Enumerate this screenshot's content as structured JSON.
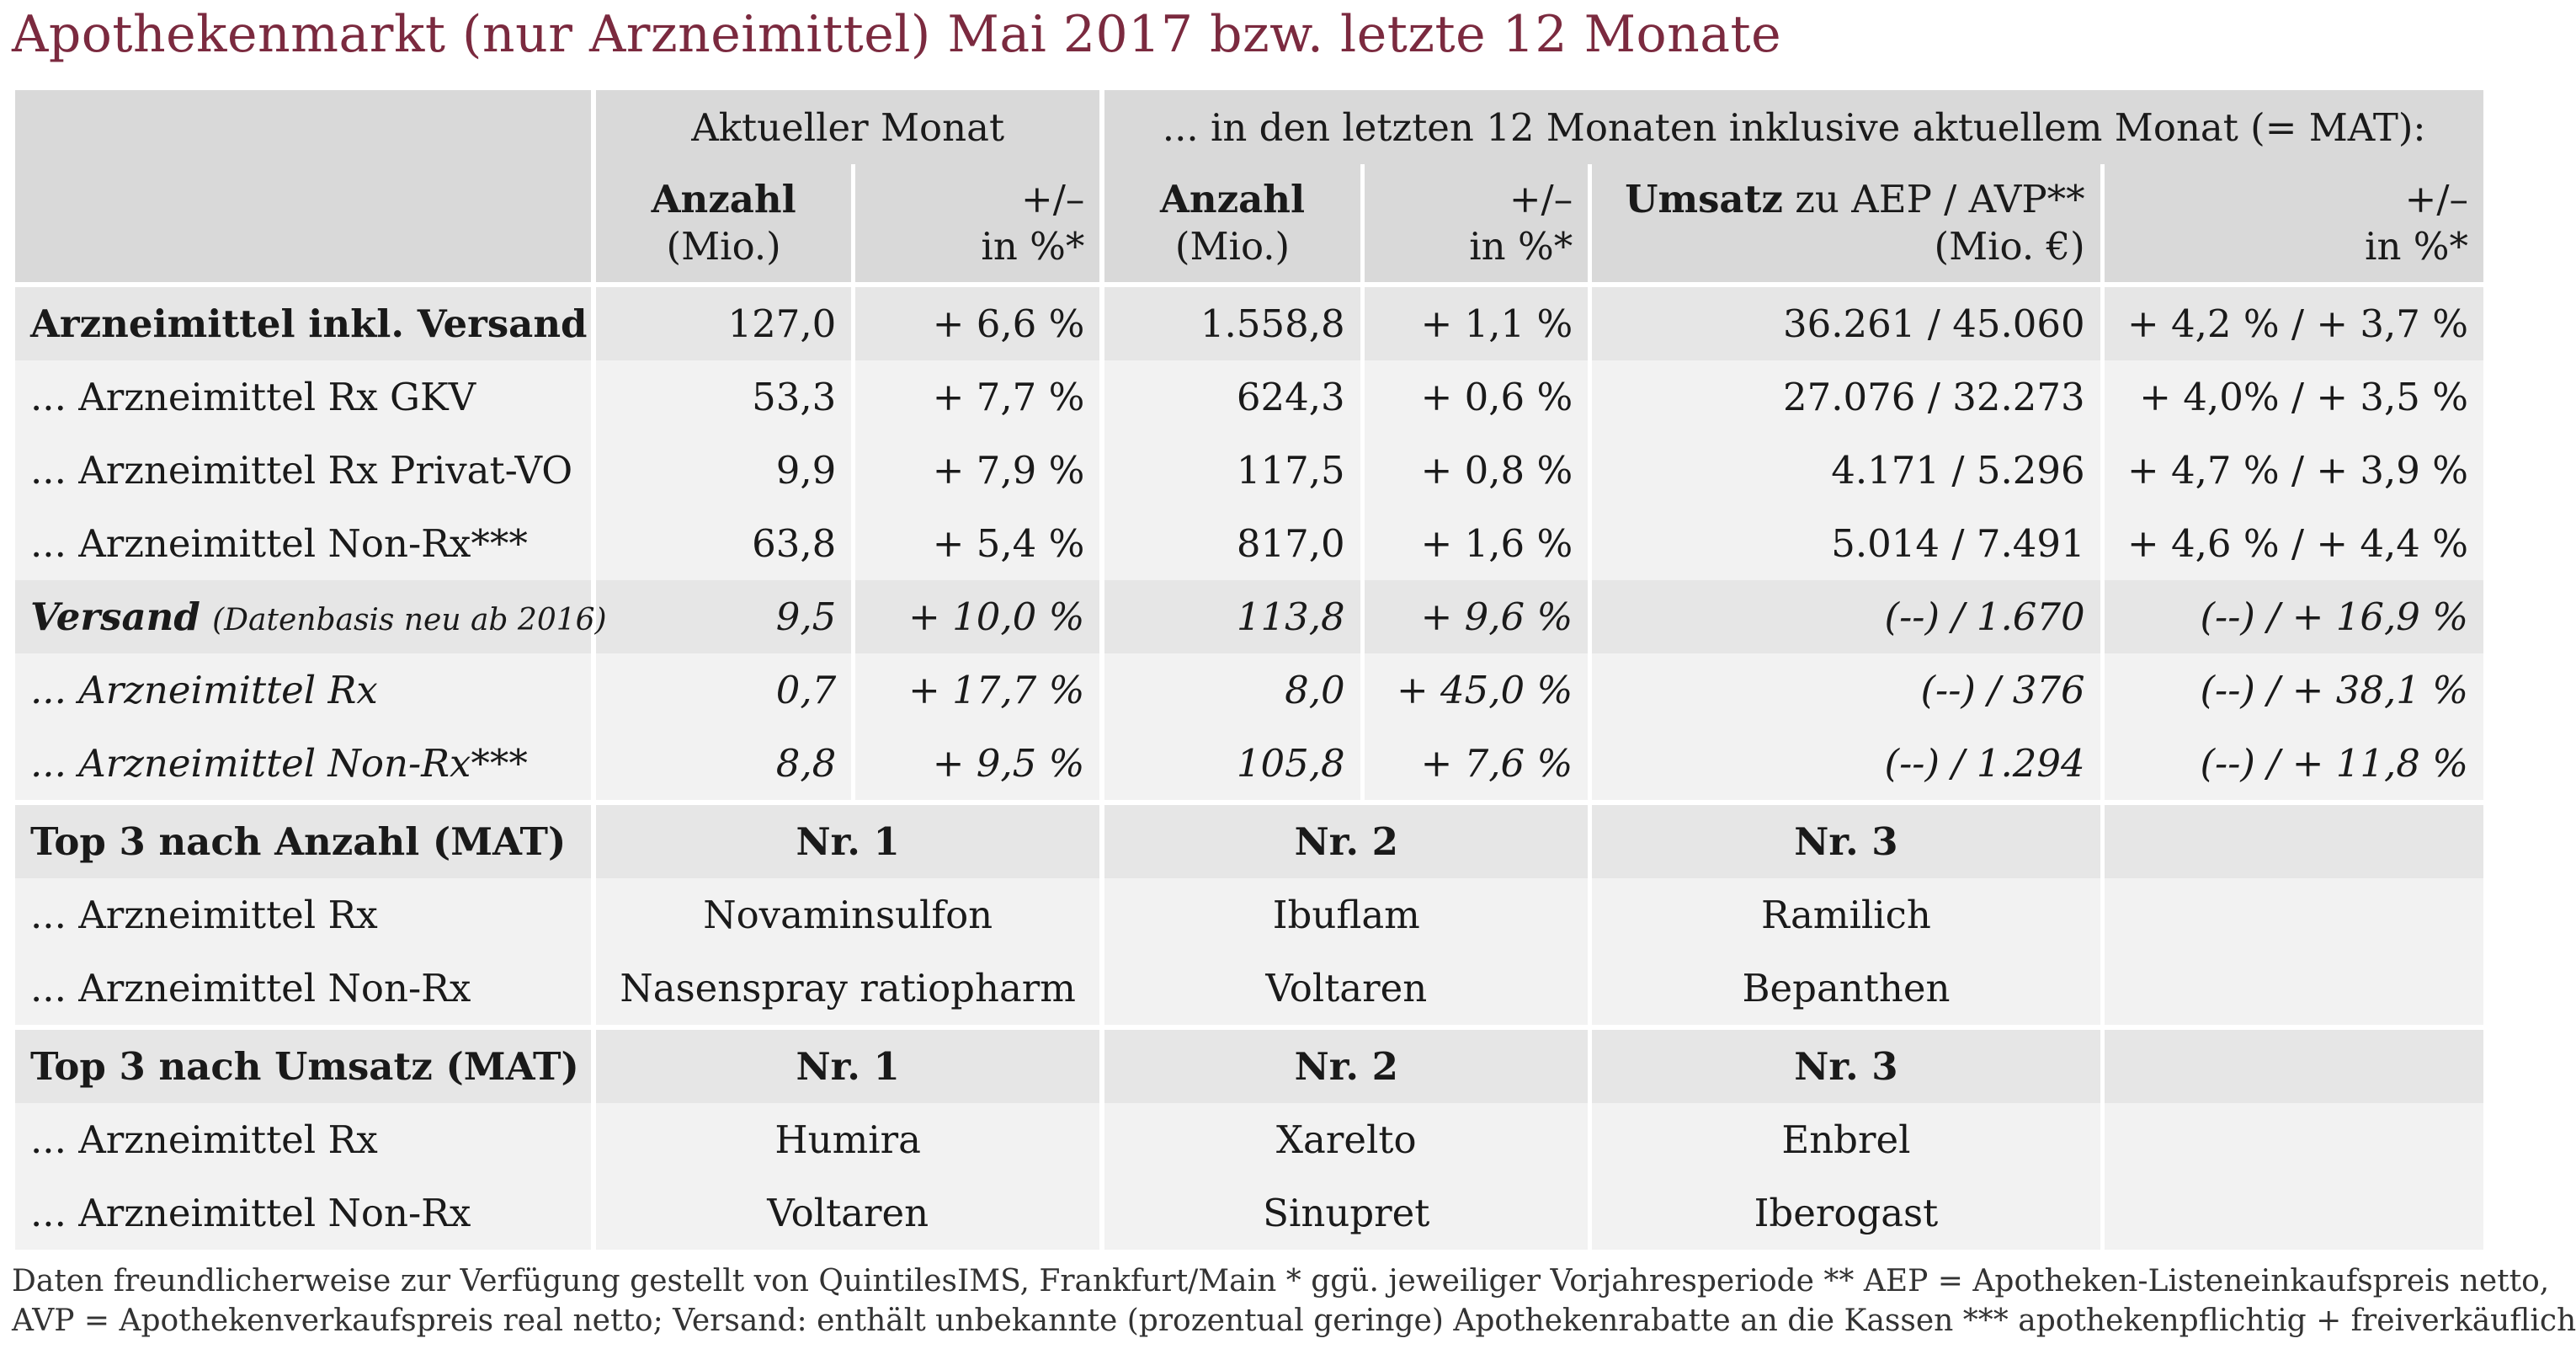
{
  "title": "Apothekenmarkt (nur Arzneimittel) Mai 2017 bzw. letzte 12 Monate",
  "header": {
    "group_current": "Aktueller Monat",
    "group_mat": "... in den letzten 12 Monaten inklusive aktuellem Monat (= MAT):",
    "col_anzahl_1": "Anzahl",
    "col_anzahl_2": "(Mio.)",
    "col_pm_1": "+/–",
    "col_pm_2": "in %*",
    "col_mat_anzahl_1": "Anzahl",
    "col_mat_anzahl_2": "(Mio.)",
    "col_mat_pm_1": "+/–",
    "col_mat_pm_2": "in %*",
    "col_umsatz_bold": "Umsatz",
    "col_umsatz_rest": " zu AEP / AVP**",
    "col_umsatz_2": "(Mio. €)",
    "col_umsatz_pm_1": "+/–",
    "col_umsatz_pm_2": "in %*"
  },
  "rows": [
    {
      "label": "Arzneimittel inkl. Versand",
      "anzahl": "127,0",
      "pm": "+ 6,6 %",
      "mat_anzahl": "1.558,8",
      "mat_pm": "+ 1,1 %",
      "umsatz": "36.261 / 45.060",
      "umsatz_pm": "+ 4,2 % / + 3,7 %"
    },
    {
      "label": "... Arzneimittel Rx GKV",
      "anzahl": "53,3",
      "pm": "+ 7,7 %",
      "mat_anzahl": "624,3",
      "mat_pm": "+ 0,6 %",
      "umsatz": "27.076 / 32.273",
      "umsatz_pm": "+ 4,0% / + 3,5 %"
    },
    {
      "label": "... Arzneimittel Rx Privat-VO",
      "anzahl": "9,9",
      "pm": "+ 7,9 %",
      "mat_anzahl": "117,5",
      "mat_pm": "+ 0,8 %",
      "umsatz": "4.171 / 5.296",
      "umsatz_pm": "+ 4,7 % / + 3,9 %"
    },
    {
      "label": "... Arzneimittel Non-Rx***",
      "anzahl": "63,8",
      "pm": "+ 5,4 %",
      "mat_anzahl": "817,0",
      "mat_pm": "+ 1,6 %",
      "umsatz": "5.014 / 7.491",
      "umsatz_pm": "+ 4,6 % / + 4,4 %"
    },
    {
      "label": "Versand",
      "label_note": "(Datenbasis neu ab 2016)",
      "anzahl": "9,5",
      "pm": "+ 10,0 %",
      "mat_anzahl": "113,8",
      "mat_pm": "+ 9,6 %",
      "umsatz": "(--) / 1.670",
      "umsatz_pm": "(--) / + 16,9 %"
    },
    {
      "label": "... Arzneimittel Rx",
      "anzahl": "0,7",
      "pm": "+ 17,7 %",
      "mat_anzahl": "8,0",
      "mat_pm": "+ 45,0 %",
      "umsatz": "(--) / 376",
      "umsatz_pm": "(--) / + 38,1 %"
    },
    {
      "label": "... Arzneimittel Non-Rx***",
      "anzahl": "8,8",
      "pm": "+ 9,5 %",
      "mat_anzahl": "105,8",
      "mat_pm": "+ 7,6 %",
      "umsatz": "(--) / 1.294",
      "umsatz_pm": "(--) / + 11,8 %"
    }
  ],
  "top_anzahl": {
    "title": "Top 3 nach Anzahl (MAT)",
    "ranks": [
      "Nr. 1",
      "Nr. 2",
      "Nr. 3"
    ],
    "rx_label": "... Arzneimittel Rx",
    "rx": [
      "Novaminsulfon",
      "Ibuflam",
      "Ramilich"
    ],
    "nonrx_label": "... Arzneimittel Non-Rx",
    "nonrx": [
      "Nasenspray ratiopharm",
      "Voltaren",
      "Bepanthen"
    ]
  },
  "top_umsatz": {
    "title": "Top 3 nach Umsatz (MAT)",
    "ranks": [
      "Nr. 1",
      "Nr. 2",
      "Nr. 3"
    ],
    "rx_label": "... Arzneimittel Rx",
    "rx": [
      "Humira",
      "Xarelto",
      "Enbrel"
    ],
    "nonrx_label": "... Arzneimittel Non-Rx",
    "nonrx": [
      "Voltaren",
      "Sinupret",
      "Iberogast"
    ]
  },
  "footer": {
    "line1": "Daten freundlicherweise zur Verfügung gestellt von QuintilesIMS, Frankfurt/Main    * ggü. jeweiliger Vorjahresperiode    ** AEP = Apotheken-Listeneinkaufspreis netto,",
    "line2": "AVP = Apothekenverkaufspreis real netto; Versand: enthält unbekannte (prozentual geringe) Apothekenrabatte an die Kassen    *** apothekenpflichtig + freiverkäuflich"
  },
  "chart_data": {
    "type": "table",
    "title": "Apothekenmarkt (nur Arzneimittel) Mai 2017 bzw. letzte 12 Monate",
    "columns": [
      "",
      "Anzahl (Mio.)",
      "+/– in %*",
      "Anzahl (Mio.)",
      "+/– in %*",
      "Umsatz zu AEP / AVP** (Mio. €)",
      "+/– in %*"
    ],
    "rows": [
      [
        "Arzneimittel inkl. Versand",
        "127,0",
        "+ 6,6 %",
        "1.558,8",
        "+ 1,1 %",
        "36.261 / 45.060",
        "+ 4,2 % / + 3,7 %"
      ],
      [
        "... Arzneimittel Rx GKV",
        "53,3",
        "+ 7,7 %",
        "624,3",
        "+ 0,6 %",
        "27.076 / 32.273",
        "+ 4,0% / + 3,5 %"
      ],
      [
        "... Arzneimittel Rx Privat-VO",
        "9,9",
        "+ 7,9 %",
        "117,5",
        "+ 0,8 %",
        "4.171 / 5.296",
        "+ 4,7 % / + 3,9 %"
      ],
      [
        "... Arzneimittel Non-Rx***",
        "63,8",
        "+ 5,4 %",
        "817,0",
        "+ 1,6 %",
        "5.014 / 7.491",
        "+ 4,6 % / + 4,4 %"
      ],
      [
        "Versand (Datenbasis neu ab 2016)",
        "9,5",
        "+ 10,0 %",
        "113,8",
        "+ 9,6 %",
        "(--) / 1.670",
        "(--) / + 16,9 %"
      ],
      [
        "... Arzneimittel Rx",
        "0,7",
        "+ 17,7 %",
        "8,0",
        "+ 45,0 %",
        "(--) / 376",
        "(--) / + 38,1 %"
      ],
      [
        "... Arzneimittel Non-Rx***",
        "8,8",
        "+ 9,5 %",
        "105,8",
        "+ 7,6 %",
        "(--) / 1.294",
        "(--) / + 11,8 %"
      ]
    ]
  }
}
